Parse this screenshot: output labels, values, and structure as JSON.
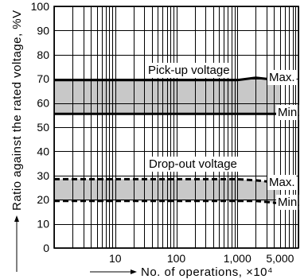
{
  "chart_data": {
    "type": "line",
    "xlabel": "No. of operations, ×10⁴",
    "ylabel": "Ratio against the rated voltage, %V",
    "xscale": "log",
    "xlim": [
      1,
      10000
    ],
    "ylim": [
      0,
      100
    ],
    "grid": true,
    "xticks": {
      "values": [
        10,
        100,
        1000,
        5000
      ],
      "labels": [
        "10",
        "100",
        "1,000",
        "5,000"
      ]
    },
    "yticks": {
      "values": [
        0,
        10,
        20,
        30,
        40,
        50,
        60,
        70,
        80,
        90,
        100
      ],
      "labels": [
        "0",
        "10",
        "20",
        "30",
        "40",
        "50",
        "60",
        "70",
        "80",
        "90",
        "100"
      ]
    },
    "bands": [
      {
        "label": "Pick-up voltage",
        "line_style": "solid",
        "series": [
          {
            "name": "Max.",
            "x": [
              1,
              1000,
              2000,
              3000,
              5000
            ],
            "y": [
              69.5,
              69.5,
              70.5,
              70,
              70.5
            ]
          },
          {
            "name": "Min.",
            "x": [
              1,
              5000
            ],
            "y": [
              55.5,
              55.5
            ]
          }
        ]
      },
      {
        "label": "Drop-out voltage",
        "line_style": "dashed",
        "series": [
          {
            "name": "Max.",
            "x": [
              1,
              1000,
              2000,
              5000
            ],
            "y": [
              28.5,
              28.5,
              28,
              27
            ]
          },
          {
            "name": "Min.",
            "x": [
              1,
              2000,
              5000
            ],
            "y": [
              19.5,
              19.5,
              18.5
            ]
          }
        ]
      }
    ],
    "colors": {
      "band_fill": "#c8c8c8",
      "line": "#000000",
      "grid": "#000000",
      "background": "#ffffff"
    }
  }
}
